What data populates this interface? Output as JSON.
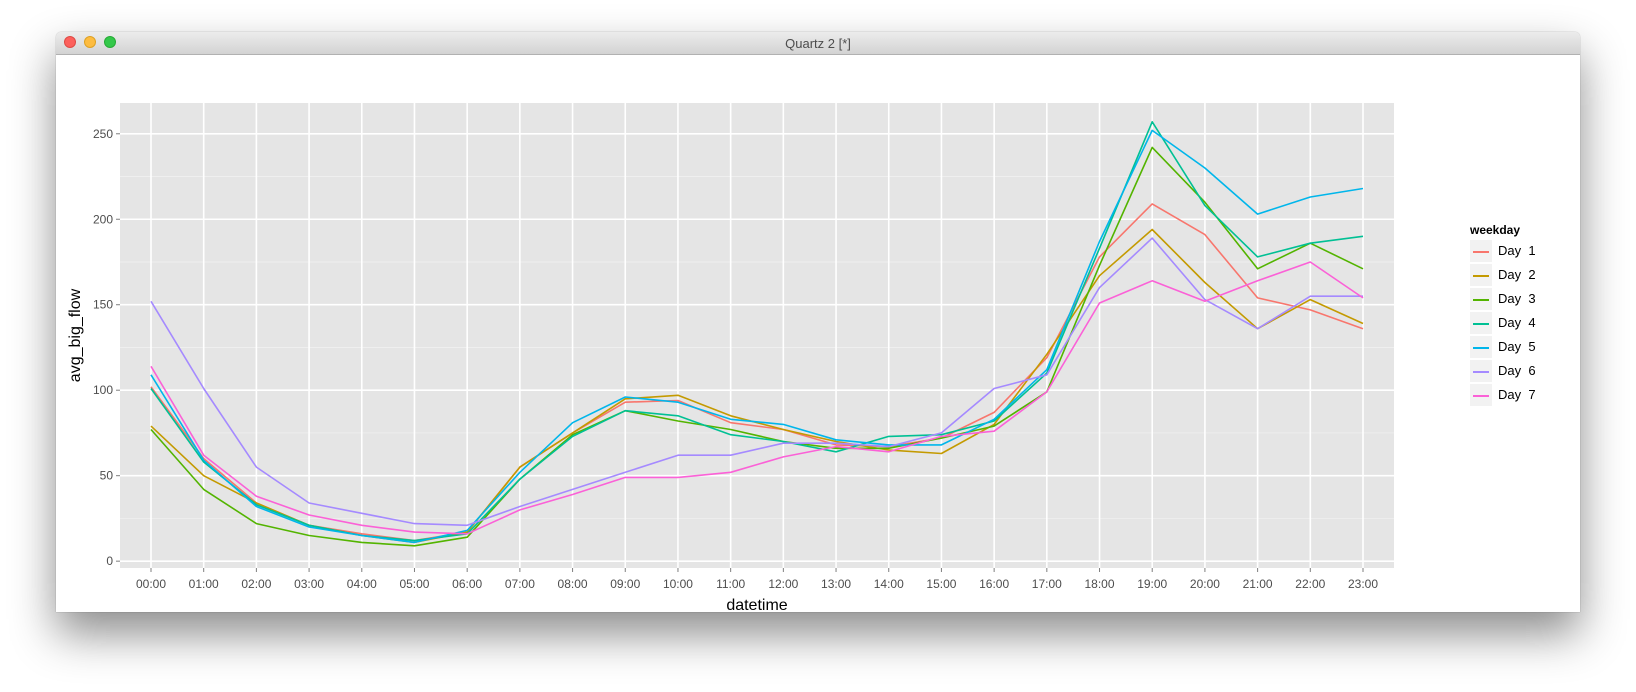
{
  "window": {
    "title": "Quartz 2 [*]"
  },
  "chart_data": {
    "type": "line",
    "title": "",
    "xlabel": "datetime",
    "ylabel": "avg_big_flow",
    "ylim": [
      -4,
      268
    ],
    "yticks": [
      0,
      50,
      100,
      150,
      200,
      250
    ],
    "grid": true,
    "legend_placement": "right",
    "legend_title": "weekday",
    "categories": [
      "00:00",
      "01:00",
      "02:00",
      "03:00",
      "04:00",
      "05:00",
      "06:00",
      "07:00",
      "08:00",
      "09:00",
      "10:00",
      "11:00",
      "12:00",
      "13:00",
      "14:00",
      "15:00",
      "16:00",
      "17:00",
      "18:00",
      "19:00",
      "20:00",
      "21:00",
      "22:00",
      "23:00"
    ],
    "series": [
      {
        "name": "Day  1",
        "color": "#f8766d",
        "values": [
          102,
          60,
          34,
          21,
          16,
          12,
          17,
          55,
          75,
          93,
          94,
          81,
          77,
          68,
          67,
          72,
          87,
          119,
          178,
          209,
          191,
          154,
          147,
          136
        ]
      },
      {
        "name": "Day  2",
        "color": "#c49a00",
        "values": [
          79,
          50,
          34,
          21,
          15,
          11,
          17,
          55,
          75,
          95,
          97,
          85,
          77,
          70,
          65,
          63,
          80,
          121,
          167,
          194,
          163,
          136,
          153,
          139
        ]
      },
      {
        "name": "Day  3",
        "color": "#53b400",
        "values": [
          77,
          42,
          22,
          15,
          11,
          9,
          14,
          48,
          74,
          88,
          82,
          77,
          70,
          66,
          66,
          72,
          79,
          99,
          173,
          242,
          210,
          171,
          186,
          171
        ]
      },
      {
        "name": "Day  4",
        "color": "#00c094",
        "values": [
          101,
          58,
          33,
          21,
          15,
          12,
          16,
          48,
          73,
          88,
          85,
          74,
          70,
          64,
          73,
          74,
          82,
          110,
          183,
          257,
          208,
          178,
          186,
          190
        ]
      },
      {
        "name": "Day  5",
        "color": "#00b6eb",
        "values": [
          109,
          59,
          32,
          20,
          15,
          11,
          18,
          52,
          81,
          96,
          93,
          83,
          80,
          71,
          68,
          68,
          83,
          112,
          187,
          252,
          230,
          203,
          213,
          218
        ]
      },
      {
        "name": "Day  6",
        "color": "#a58aff",
        "values": [
          152,
          101,
          55,
          34,
          28,
          22,
          21,
          32,
          42,
          52,
          62,
          62,
          69,
          69,
          67,
          75,
          101,
          109,
          160,
          189,
          153,
          136,
          155,
          155
        ]
      },
      {
        "name": "Day  7",
        "color": "#fb61d7",
        "values": [
          114,
          62,
          38,
          27,
          21,
          17,
          16,
          30,
          39,
          49,
          49,
          52,
          61,
          67,
          64,
          73,
          76,
          99,
          151,
          164,
          152,
          164,
          175,
          154
        ]
      }
    ]
  }
}
